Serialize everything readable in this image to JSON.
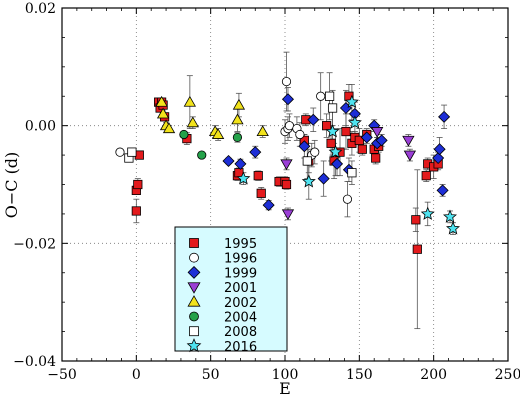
{
  "chart_data": {
    "type": "scatter",
    "xlabel": "E",
    "ylabel": "O−C (d)",
    "xlim": [
      -50,
      250
    ],
    "ylim": [
      -0.04,
      0.02
    ],
    "xticks": [
      -50,
      0,
      50,
      100,
      150,
      200,
      250
    ],
    "yticks": [
      -0.04,
      -0.02,
      0.0,
      0.02
    ],
    "ytick_labels": [
      "−0.04",
      "−0.02",
      "0.00",
      "0.02"
    ],
    "xtick_labels": [
      "−50",
      "0",
      "50",
      "100",
      "150",
      "200",
      "250"
    ],
    "grid": true,
    "legend_position": "lower-left",
    "series": [
      {
        "name": "1995",
        "marker": "square",
        "color": "#e31a1c",
        "fill": true,
        "points": [
          {
            "x": 0,
            "y": -0.011,
            "err": 0.0005
          },
          {
            "x": 0,
            "y": -0.0145,
            "err": 0.002
          },
          {
            "x": 1,
            "y": -0.01,
            "err": 0.001
          },
          {
            "x": 2,
            "y": -0.005,
            "err": 0.0005
          },
          {
            "x": 15,
            "y": 0.004,
            "err": 0.0004
          },
          {
            "x": 16,
            "y": 0.003,
            "err": 0.0004
          },
          {
            "x": 17,
            "y": 0.004,
            "err": 0.0004
          },
          {
            "x": 18,
            "y": 0.0035,
            "err": 0.0004
          },
          {
            "x": 19,
            "y": 0.0015,
            "err": 0.0004
          },
          {
            "x": 34,
            "y": -0.0022,
            "err": 0.001
          },
          {
            "x": 68,
            "y": -0.0085,
            "err": 0.0008
          },
          {
            "x": 69,
            "y": -0.008,
            "err": 0.0008
          },
          {
            "x": 82,
            "y": -0.0085,
            "err": 0.0008
          },
          {
            "x": 84,
            "y": -0.0115,
            "err": 0.001
          },
          {
            "x": 96,
            "y": -0.0095,
            "err": 0.0008
          },
          {
            "x": 100,
            "y": -0.0095,
            "err": 0.0008
          },
          {
            "x": 101,
            "y": -0.01,
            "err": 0.0008
          },
          {
            "x": 113,
            "y": -0.0025,
            "err": 0.001
          },
          {
            "x": 114,
            "y": 0.001,
            "err": 0.001
          },
          {
            "x": 116,
            "y": -0.006,
            "err": 0.002
          },
          {
            "x": 128,
            "y": 0.0,
            "err": 0.002
          },
          {
            "x": 131,
            "y": -0.003,
            "err": 0.003
          },
          {
            "x": 133,
            "y": -0.006,
            "err": 0.003
          },
          {
            "x": 137,
            "y": -0.0045,
            "err": 0.004
          },
          {
            "x": 141,
            "y": -0.001,
            "err": 0.003
          },
          {
            "x": 143,
            "y": 0.005,
            "err": 0.002
          },
          {
            "x": 145,
            "y": -0.003,
            "err": 0.002
          },
          {
            "x": 147,
            "y": -0.002,
            "err": 0.001
          },
          {
            "x": 150,
            "y": -0.0025,
            "err": 0.002
          },
          {
            "x": 152,
            "y": -0.004,
            "err": 0.001
          },
          {
            "x": 155,
            "y": -0.0015,
            "err": 0.001
          },
          {
            "x": 160,
            "y": -0.004,
            "err": 0.001
          },
          {
            "x": 161,
            "y": -0.0055,
            "err": 0.001
          },
          {
            "x": 163,
            "y": -0.0035,
            "err": 0.001
          },
          {
            "x": 188,
            "y": -0.016,
            "err": 0.002
          },
          {
            "x": 189,
            "y": -0.021,
            "err": 0.0135
          },
          {
            "x": 195,
            "y": -0.0085,
            "err": 0.001
          },
          {
            "x": 196,
            "y": -0.0065,
            "err": 0.001
          },
          {
            "x": 200,
            "y": -0.007,
            "err": 0.002
          },
          {
            "x": 203,
            "y": -0.0065,
            "err": 0.001
          }
        ]
      },
      {
        "name": "1996",
        "marker": "circle",
        "color": "#000000",
        "fill": false,
        "points": [
          {
            "x": -11,
            "y": -0.0045,
            "err": 0.0005
          },
          {
            "x": 100,
            "y": -0.001,
            "err": 0.002
          },
          {
            "x": 101,
            "y": 0.0075,
            "err": 0.005
          },
          {
            "x": 102,
            "y": -0.0005,
            "err": 0.002
          },
          {
            "x": 103,
            "y": 0.0,
            "err": 0.002
          },
          {
            "x": 108,
            "y": -0.0005,
            "err": 0.002
          },
          {
            "x": 110,
            "y": -0.0015,
            "err": 0.002
          },
          {
            "x": 118,
            "y": -0.005,
            "err": 0.002
          },
          {
            "x": 120,
            "y": -0.0045,
            "err": 0.002
          },
          {
            "x": 124,
            "y": 0.005,
            "err": 0.004
          },
          {
            "x": 142,
            "y": -0.0125,
            "err": 0.003
          }
        ]
      },
      {
        "name": "1999",
        "marker": "diamond",
        "color": "#1d2ed6",
        "fill": true,
        "points": [
          {
            "x": 62,
            "y": -0.006,
            "err": 0.0005
          },
          {
            "x": 70,
            "y": -0.0065,
            "err": 0.0008
          },
          {
            "x": 80,
            "y": -0.0045,
            "err": 0.001
          },
          {
            "x": 89,
            "y": -0.0135,
            "err": 0.0008
          },
          {
            "x": 102,
            "y": 0.0045,
            "err": 0.002
          },
          {
            "x": 113,
            "y": -0.0035,
            "err": 0.002
          },
          {
            "x": 119,
            "y": 0.001,
            "err": 0.002
          },
          {
            "x": 126,
            "y": -0.009,
            "err": 0.003
          },
          {
            "x": 135,
            "y": -0.0065,
            "err": 0.002
          },
          {
            "x": 141,
            "y": 0.003,
            "err": 0.003
          },
          {
            "x": 143,
            "y": -0.0075,
            "err": 0.002
          },
          {
            "x": 147,
            "y": 0.002,
            "err": 0.002
          },
          {
            "x": 155,
            "y": -0.002,
            "err": 0.001
          },
          {
            "x": 160,
            "y": 0.0,
            "err": 0.001
          },
          {
            "x": 162,
            "y": -0.003,
            "err": 0.001
          },
          {
            "x": 165,
            "y": -0.0025,
            "err": 0.001
          },
          {
            "x": 203,
            "y": -0.0055,
            "err": 0.001
          },
          {
            "x": 204,
            "y": -0.004,
            "err": 0.002
          },
          {
            "x": 206,
            "y": -0.011,
            "err": 0.001
          },
          {
            "x": 207,
            "y": 0.0015,
            "err": 0.002
          }
        ]
      },
      {
        "name": "2001",
        "marker": "triangle-down",
        "color": "#9b3fd6",
        "fill": true,
        "points": [
          {
            "x": 101,
            "y": -0.0065,
            "err": 0.001
          },
          {
            "x": 102,
            "y": -0.015,
            "err": 0.001
          },
          {
            "x": 183,
            "y": -0.0025,
            "err": 0.001
          },
          {
            "x": 184,
            "y": -0.005,
            "err": 0.001
          },
          {
            "x": 162,
            "y": -0.001,
            "err": 0.001
          }
        ]
      },
      {
        "name": "2002",
        "marker": "triangle-up",
        "color": "#f2e31b",
        "fill": true,
        "points": [
          {
            "x": 17,
            "y": 0.004,
            "err": 0.0005
          },
          {
            "x": 18,
            "y": 0.002,
            "err": 0.0005
          },
          {
            "x": 20,
            "y": 0.0,
            "err": 0.0005
          },
          {
            "x": 22,
            "y": -0.0005,
            "err": 0.0005
          },
          {
            "x": 36,
            "y": 0.004,
            "err": 0.0045
          },
          {
            "x": 38,
            "y": 0.0005,
            "err": 0.001
          },
          {
            "x": 53,
            "y": -0.001,
            "err": 0.001
          },
          {
            "x": 55,
            "y": -0.0015,
            "err": 0.001
          },
          {
            "x": 68,
            "y": 0.001,
            "err": 0.002
          },
          {
            "x": 69,
            "y": 0.0035,
            "err": 0.002
          },
          {
            "x": 85,
            "y": -0.001,
            "err": 0.001
          }
        ]
      },
      {
        "name": "2004",
        "marker": "circle",
        "color": "#24a24a",
        "fill": true,
        "points": [
          {
            "x": 32,
            "y": -0.0015,
            "err": 0.0005
          },
          {
            "x": 44,
            "y": -0.005,
            "err": 0.0005
          },
          {
            "x": 68,
            "y": -0.002,
            "err": 0.0008
          }
        ]
      },
      {
        "name": "2008",
        "marker": "square",
        "color": "#000000",
        "fill": false,
        "points": [
          {
            "x": -5,
            "y": -0.0055,
            "err": 0.0005
          },
          {
            "x": -3,
            "y": -0.0045,
            "err": 0.0005
          },
          {
            "x": 115,
            "y": -0.006,
            "err": 0.003
          },
          {
            "x": 130,
            "y": 0.005,
            "err": 0.004
          },
          {
            "x": 132,
            "y": 0.003,
            "err": 0.003
          },
          {
            "x": 145,
            "y": -0.008,
            "err": 0.002
          }
        ]
      },
      {
        "name": "2016",
        "marker": "star",
        "color": "#4fe3f0",
        "fill": true,
        "points": [
          {
            "x": 72,
            "y": -0.009,
            "err": 0.001
          },
          {
            "x": 116,
            "y": -0.0095,
            "err": 0.003
          },
          {
            "x": 132,
            "y": -0.001,
            "err": 0.004
          },
          {
            "x": 134,
            "y": -0.0045,
            "err": 0.004
          },
          {
            "x": 145,
            "y": 0.004,
            "err": 0.003
          },
          {
            "x": 147,
            "y": 0.0005,
            "err": 0.002
          },
          {
            "x": 196,
            "y": -0.015,
            "err": 0.002
          },
          {
            "x": 211,
            "y": -0.0155,
            "err": 0.001
          },
          {
            "x": 213,
            "y": -0.0175,
            "err": 0.001
          }
        ]
      }
    ]
  }
}
